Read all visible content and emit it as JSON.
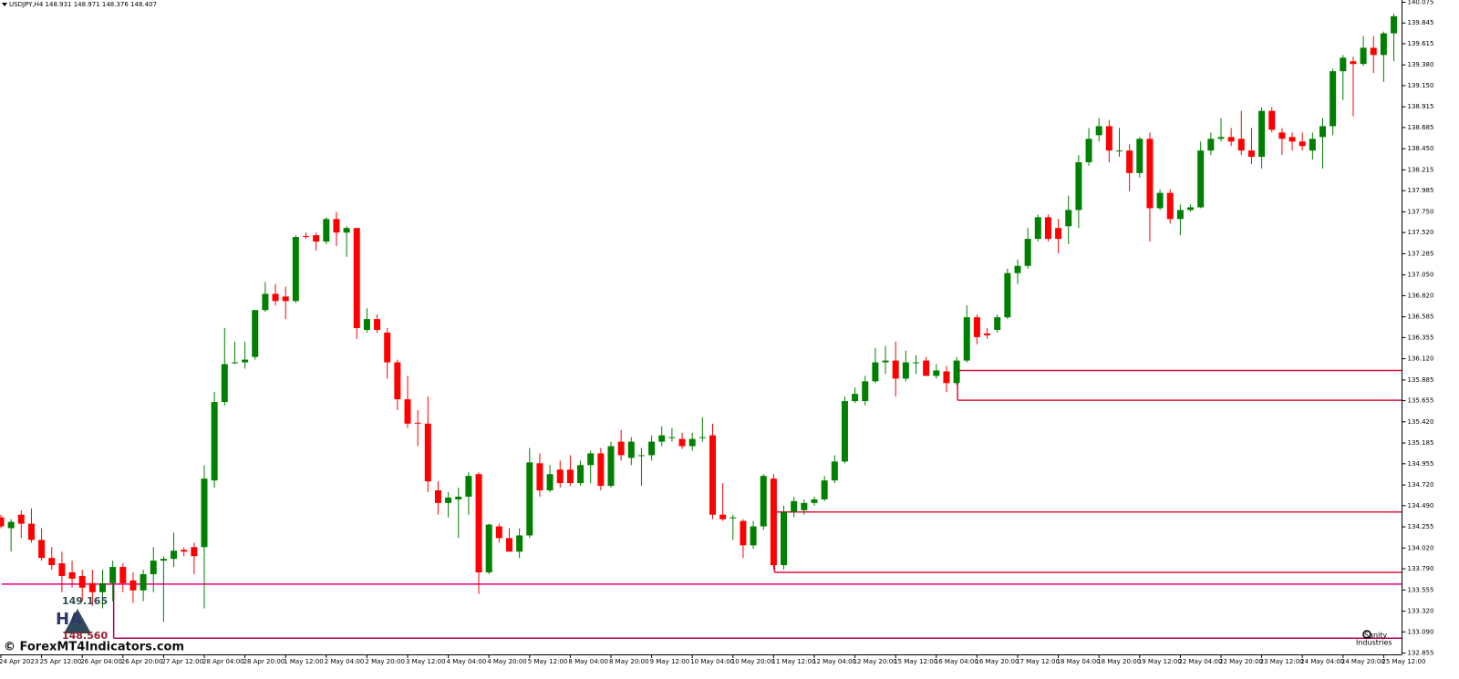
{
  "chart_data": {
    "type": "candlestick",
    "title": "USDJPY,H4  148.931 148.971 148.376 148.407",
    "watermark": "© ForexMT4Indicators.com",
    "indicator_labels": [
      "149.165",
      "HA",
      "148.560"
    ],
    "brand": [
      "Sanity",
      "Industries"
    ],
    "up_color": "#008000",
    "down_color": "#ff0000",
    "categories": [
      "24 Apr 2023",
      null,
      null,
      null,
      "25 Apr 12:00",
      null,
      null,
      null,
      "26 Apr 04:00",
      null,
      null,
      null,
      "26 Apr 20:00",
      null,
      null,
      null,
      "27 Apr 12:00",
      null,
      null,
      null,
      "28 Apr 04:00",
      null,
      null,
      null,
      "28 Apr 20:00",
      null,
      null,
      null,
      "1 May 12:00",
      null,
      null,
      null,
      "2 May 04:00",
      null,
      null,
      null,
      "2 May 20:00",
      null,
      null,
      null,
      "3 May 12:00",
      null,
      null,
      null,
      "4 May 04:00",
      null,
      null,
      null,
      "4 May 20:00",
      null,
      null,
      null,
      "5 May 12:00",
      null,
      null,
      null,
      "8 May 04:00",
      null,
      null,
      null,
      "8 May 20:00",
      null,
      null,
      null,
      "9 May 12:00",
      null,
      null,
      null,
      "10 May 04:00",
      null,
      null,
      null,
      "10 May 20:00",
      null,
      null,
      null,
      "11 May 12:00",
      null,
      null,
      null,
      "12 May 04:00",
      null,
      null,
      null,
      "12 May 20:00",
      null,
      null,
      null,
      "15 May 12:00",
      null,
      null,
      null,
      "16 May 04:00",
      null,
      null,
      null,
      "16 May 20:00",
      null,
      null,
      null,
      "17 May 12:00",
      null,
      null,
      null,
      "18 May 04:00",
      null,
      null,
      null,
      "18 May 20:00",
      null,
      null,
      null,
      "19 May 12:00",
      null,
      null,
      null,
      "22 May 04:00",
      null,
      null,
      null,
      "22 May 20:00",
      null,
      null,
      null,
      "23 May 12:00",
      null,
      null,
      null,
      "24 May 04:00",
      null,
      null,
      null,
      "24 May 20:00",
      null,
      null,
      null,
      "25 May 12:00",
      null
    ],
    "open": [
      134.36,
      134.24,
      134.39,
      134.29,
      134.11,
      133.91,
      133.85,
      133.75,
      133.71,
      133.63,
      133.53,
      133.63,
      133.81,
      133.66,
      133.55,
      133.73,
      133.88,
      133.9,
      134.0,
      134.03,
      134.03,
      134.77,
      135.64,
      136.08,
      136.08,
      136.14,
      136.66,
      136.84,
      136.81,
      136.76,
      137.48,
      137.49,
      137.42,
      137.67,
      137.52,
      137.57,
      136.44,
      136.56,
      136.41,
      136.08,
      135.67,
      135.41,
      135.4,
      134.66,
      134.52,
      134.56,
      134.59,
      134.84,
      133.75,
      134.26,
      134.13,
      133.98,
      134.16,
      134.96,
      134.66,
      134.89,
      134.89,
      134.74,
      134.94,
      135.07,
      134.71,
      135.2,
      135.02,
      135.05,
      135.05,
      135.2,
      135.25,
      135.23,
      135.15,
      135.25,
      135.27,
      134.39,
      134.36,
      134.32,
      134.05,
      134.26,
      134.79,
      133.83,
      134.42,
      134.44,
      134.52,
      134.56,
      134.77,
      134.98,
      135.65,
      135.65,
      135.87,
      136.08,
      136.1,
      135.9,
      136.08,
      136.1,
      135.93,
      135.98,
      135.85,
      136.1,
      136.58,
      136.4,
      136.44,
      136.58,
      137.07,
      137.15,
      137.45,
      137.69,
      137.57,
      137.59,
      137.77,
      138.3,
      138.6,
      138.7,
      138.43,
      138.43,
      138.18,
      138.56,
      137.79,
      137.96,
      137.67,
      137.77,
      137.8,
      138.43,
      138.56,
      138.58,
      138.56,
      138.43,
      138.36,
      138.87,
      138.63,
      138.58,
      138.53,
      138.43,
      138.58,
      138.7,
      139.31,
      139.42,
      139.39,
      139.57,
      139.49,
      139.73
    ],
    "high": [
      134.39,
      134.34,
      134.44,
      134.46,
      134.24,
      134.03,
      133.98,
      133.88,
      133.78,
      133.78,
      133.78,
      133.88,
      133.85,
      133.75,
      133.78,
      134.03,
      133.93,
      134.19,
      134.03,
      134.08,
      134.94,
      135.75,
      136.46,
      136.31,
      136.31,
      136.66,
      136.97,
      136.95,
      136.92,
      137.49,
      137.52,
      137.52,
      137.69,
      137.75,
      137.59,
      137.57,
      136.68,
      136.61,
      136.46,
      136.11,
      135.93,
      135.55,
      135.7,
      134.76,
      134.64,
      134.69,
      134.86,
      134.86,
      134.29,
      134.29,
      134.24,
      134.24,
      135.13,
      135.07,
      134.94,
      134.99,
      135.05,
      134.99,
      135.1,
      135.13,
      135.2,
      135.33,
      135.25,
      135.13,
      135.27,
      135.37,
      135.35,
      135.3,
      135.3,
      135.47,
      135.4,
      134.74,
      134.39,
      134.34,
      134.32,
      134.84,
      134.84,
      134.49,
      134.59,
      134.56,
      134.59,
      134.82,
      135.05,
      135.7,
      135.8,
      135.93,
      136.24,
      136.26,
      136.31,
      136.21,
      136.16,
      136.14,
      136.06,
      136.04,
      136.14,
      136.71,
      136.61,
      136.46,
      136.61,
      137.12,
      137.22,
      137.57,
      137.72,
      137.72,
      137.67,
      137.93,
      138.38,
      138.68,
      138.79,
      138.77,
      138.68,
      138.5,
      138.58,
      138.63,
      138.0,
      138.0,
      137.83,
      137.83,
      138.53,
      138.63,
      138.79,
      138.68,
      138.87,
      138.68,
      138.91,
      138.91,
      138.68,
      138.63,
      138.63,
      138.63,
      138.79,
      139.34,
      139.49,
      139.47,
      139.7,
      139.7,
      139.75,
      139.95
    ],
    "low": [
      134.24,
      133.98,
      134.13,
      134.08,
      133.88,
      133.78,
      133.53,
      133.58,
      133.43,
      133.38,
      133.35,
      133.43,
      133.53,
      133.41,
      133.43,
      133.53,
      133.2,
      133.81,
      133.93,
      133.73,
      133.35,
      134.69,
      135.6,
      136.06,
      136.01,
      136.11,
      136.64,
      136.71,
      136.56,
      136.74,
      137.45,
      137.32,
      137.39,
      137.37,
      137.25,
      136.34,
      136.41,
      136.41,
      135.9,
      135.55,
      135.35,
      135.15,
      134.64,
      134.39,
      134.36,
      134.13,
      134.39,
      133.51,
      133.73,
      134.08,
      133.98,
      133.91,
      134.13,
      134.59,
      134.64,
      134.69,
      134.71,
      134.71,
      134.74,
      134.66,
      134.69,
      134.99,
      134.94,
      134.71,
      134.99,
      135.15,
      135.2,
      135.12,
      135.1,
      135.2,
      134.34,
      134.32,
      134.11,
      133.91,
      134.01,
      134.22,
      133.78,
      133.78,
      134.36,
      134.39,
      134.49,
      134.54,
      134.74,
      134.96,
      135.63,
      135.6,
      135.85,
      135.95,
      135.7,
      135.87,
      135.95,
      135.93,
      135.9,
      135.75,
      135.83,
      136.08,
      136.28,
      136.34,
      136.41,
      136.56,
      136.95,
      137.12,
      137.42,
      137.42,
      137.29,
      137.39,
      137.57,
      138.26,
      138.53,
      138.3,
      138.36,
      137.98,
      138.13,
      137.42,
      137.77,
      137.62,
      137.49,
      137.75,
      137.79,
      138.38,
      138.53,
      138.48,
      138.38,
      138.28,
      138.23,
      138.63,
      138.38,
      138.43,
      138.43,
      138.33,
      138.23,
      138.6,
      138.99,
      138.81,
      139.37,
      139.29,
      139.19,
      139.42
    ],
    "close": [
      134.26,
      134.31,
      134.29,
      134.11,
      133.91,
      133.83,
      133.71,
      133.68,
      133.58,
      133.53,
      133.63,
      133.81,
      133.63,
      133.55,
      133.73,
      133.88,
      133.9,
      133.99,
      133.98,
      133.93,
      134.79,
      135.64,
      136.06,
      136.08,
      136.11,
      136.66,
      136.84,
      136.76,
      136.76,
      137.47,
      137.47,
      137.42,
      137.67,
      137.52,
      137.57,
      136.46,
      136.56,
      136.44,
      136.08,
      135.67,
      135.4,
      135.4,
      134.76,
      134.52,
      134.58,
      134.59,
      134.82,
      133.75,
      134.28,
      134.13,
      133.98,
      134.16,
      134.97,
      134.66,
      134.84,
      134.74,
      134.74,
      134.94,
      135.07,
      134.71,
      135.15,
      135.05,
      135.2,
      135.05,
      135.2,
      135.27,
      135.25,
      135.15,
      135.23,
      135.25,
      134.39,
      134.34,
      134.36,
      134.05,
      134.26,
      134.82,
      133.83,
      134.42,
      134.54,
      134.52,
      134.56,
      134.77,
      134.98,
      135.65,
      135.73,
      135.87,
      136.08,
      136.1,
      135.9,
      136.08,
      136.08,
      135.93,
      135.99,
      135.85,
      136.1,
      136.58,
      136.36,
      136.38,
      136.58,
      137.07,
      137.15,
      137.45,
      137.69,
      137.45,
      137.45,
      137.77,
      138.3,
      138.56,
      138.7,
      138.43,
      138.43,
      138.18,
      138.56,
      137.79,
      137.96,
      137.67,
      137.77,
      137.8,
      138.43,
      138.56,
      138.58,
      138.53,
      138.43,
      138.36,
      138.87,
      138.66,
      138.56,
      138.53,
      138.48,
      138.56,
      138.7,
      139.31,
      139.46,
      139.39,
      139.57,
      139.49,
      139.73,
      139.92
    ],
    "levels": [
      {
        "value": 135.99,
        "from": 94,
        "color": "#dc143c"
      },
      {
        "value": 135.66,
        "from": 94,
        "color": "#dc143c"
      },
      {
        "value": 134.42,
        "from": 76,
        "color": "#dc143c"
      },
      {
        "value": 133.75,
        "from": 76,
        "color": "#dc143c"
      },
      {
        "value": 133.62,
        "from": 0,
        "color": "#e6007e"
      },
      {
        "value": 133.02,
        "from": 11,
        "color": "#b0005e"
      }
    ],
    "ylim": [
      132.84,
      140.1
    ],
    "yticks": [
      140.075,
      139.845,
      139.615,
      {
        "value": 139.38,
        "label": "139.380"
      },
      {
        "value": 139.15,
        "label": "139.150"
      },
      138.915,
      138.685,
      {
        "value": 138.45,
        "label": "138.450"
      },
      138.215,
      137.985,
      {
        "value": 137.75,
        "label": "137.750"
      },
      {
        "value": 137.52,
        "label": "137.520"
      },
      137.285,
      {
        "value": 137.05,
        "label": "137.050"
      },
      {
        "value": 136.82,
        "label": "136.820"
      },
      136.585,
      136.355,
      {
        "value": 136.12,
        "label": "136.120"
      },
      135.885,
      135.655,
      {
        "value": 135.42,
        "label": "135.420"
      },
      135.185,
      134.955,
      {
        "value": 134.72,
        "label": "134.720"
      },
      {
        "value": 134.49,
        "label": "134.490"
      },
      134.255,
      {
        "value": 134.02,
        "label": "134.020"
      },
      {
        "value": 133.79,
        "label": "133.790"
      },
      133.555,
      {
        "value": 133.32,
        "label": "133.320"
      },
      {
        "value": 133.09,
        "label": "133.090"
      },
      132.855
    ]
  }
}
